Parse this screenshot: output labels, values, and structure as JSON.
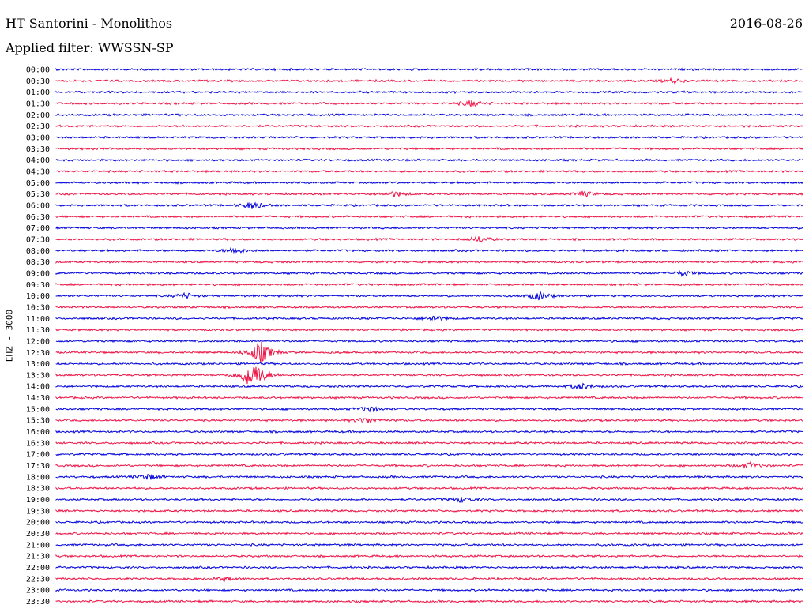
{
  "header": {
    "station": "HT Santorini - Monolithos",
    "date": "2016-08-26",
    "filter": "Applied filter: WWSSN-SP",
    "channel": "EHZ - 3000"
  },
  "chart_data": {
    "type": "line",
    "title": "HT Santorini - Monolithos",
    "date": "2016-08-26",
    "filter": "WWSSN-SP",
    "ylabel": "EHZ - 3000",
    "xlabel": "",
    "trace_colors": [
      "#0000dd",
      "#ee1144"
    ],
    "row_labels": [
      "00:00",
      "00:30",
      "01:00",
      "01:30",
      "02:00",
      "02:30",
      "03:00",
      "03:30",
      "04:00",
      "04:30",
      "05:00",
      "05:30",
      "06:00",
      "06:30",
      "07:00",
      "07:30",
      "08:00",
      "08:30",
      "09:00",
      "09:30",
      "10:00",
      "10:30",
      "11:00",
      "11:30",
      "12:00",
      "12:30",
      "13:00",
      "13:30",
      "14:00",
      "14:30",
      "15:00",
      "15:30",
      "16:00",
      "16:30",
      "17:00",
      "17:30",
      "18:00",
      "18:30",
      "19:00",
      "19:30",
      "20:00",
      "20:30",
      "21:00",
      "21:30",
      "22:00",
      "22:30",
      "23:00",
      "23:30"
    ],
    "grid": false,
    "legend": "none",
    "events": [
      {
        "row": "00:30",
        "minute": 24.8,
        "amplitude": 0.4
      },
      {
        "row": "01:30",
        "minute": 16.7,
        "amplitude": 0.6
      },
      {
        "row": "05:30",
        "minute": 13.6,
        "amplitude": 0.5
      },
      {
        "row": "05:30",
        "minute": 21.2,
        "amplitude": 0.5
      },
      {
        "row": "06:00",
        "minute": 7.9,
        "amplitude": 0.7
      },
      {
        "row": "07:30",
        "minute": 17.0,
        "amplitude": 0.6
      },
      {
        "row": "08:00",
        "minute": 7.2,
        "amplitude": 0.6
      },
      {
        "row": "09:00",
        "minute": 25.2,
        "amplitude": 0.5
      },
      {
        "row": "10:00",
        "minute": 5.2,
        "amplitude": 0.5
      },
      {
        "row": "10:00",
        "minute": 19.4,
        "amplitude": 0.8
      },
      {
        "row": "11:00",
        "minute": 15.2,
        "amplitude": 0.6
      },
      {
        "row": "12:30",
        "minute": 8.2,
        "amplitude": 2.4
      },
      {
        "row": "13:30",
        "minute": 7.7,
        "amplitude": 1.6
      },
      {
        "row": "13:30",
        "minute": 8.1,
        "amplitude": 1.6
      },
      {
        "row": "14:00",
        "minute": 21.1,
        "amplitude": 0.6
      },
      {
        "row": "15:00",
        "minute": 12.6,
        "amplitude": 0.6
      },
      {
        "row": "15:30",
        "minute": 12.5,
        "amplitude": 0.6
      },
      {
        "row": "17:30",
        "minute": 27.9,
        "amplitude": 0.6
      },
      {
        "row": "18:00",
        "minute": 3.7,
        "amplitude": 0.6
      },
      {
        "row": "19:00",
        "minute": 16.3,
        "amplitude": 0.5
      },
      {
        "row": "22:30",
        "minute": 6.8,
        "amplitude": 0.4
      }
    ]
  }
}
